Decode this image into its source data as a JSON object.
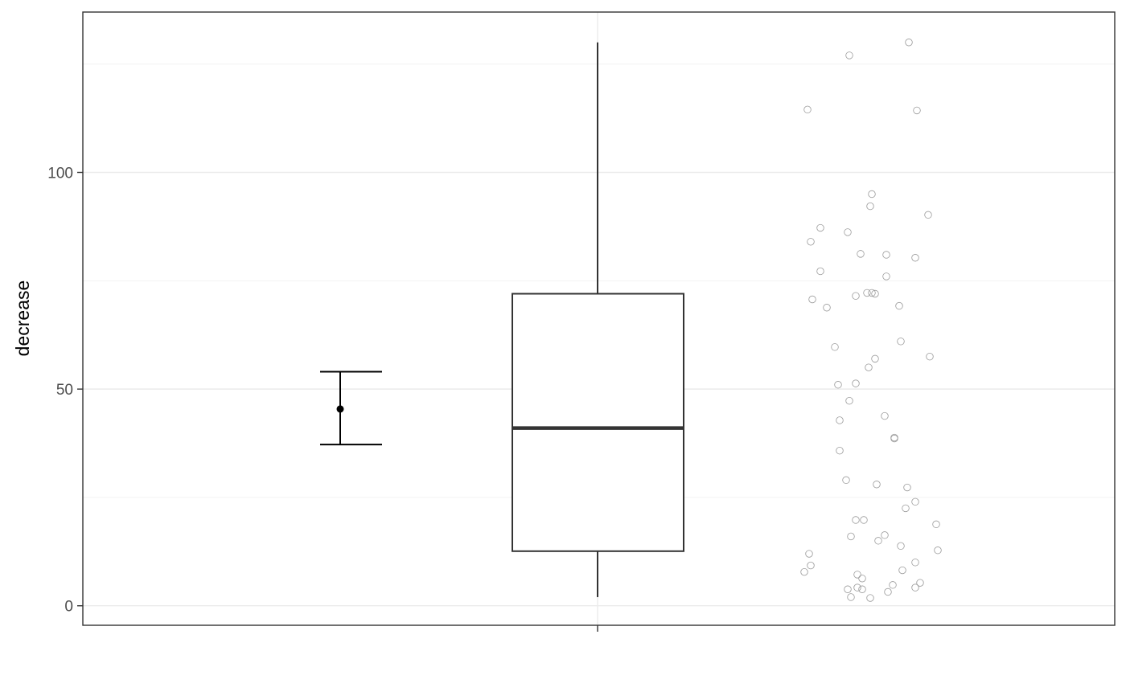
{
  "chart_data": {
    "type": "box",
    "ylabel": "decrease",
    "xlabel": "",
    "ylim": [
      -4.5,
      137
    ],
    "y_ticks": [
      "0",
      "50",
      "100"
    ],
    "y_tick_values": [
      0,
      50,
      100
    ],
    "grid": true,
    "theme": "bw",
    "colors": {
      "frame": "#333333",
      "grid_major": "#ebebeb",
      "grid_minor": "#f2f2f2",
      "box": "#333333",
      "median": "#333333",
      "points": "#999999",
      "errorbar": "#000000"
    },
    "errorbar": {
      "mean": 45.4,
      "lower": 37.2,
      "upper": 54.0
    },
    "box": {
      "whisker_low": 2.0,
      "q1": 12.6,
      "median": 41.0,
      "q3": 72.0,
      "whisker_high": 130.0
    },
    "points": [
      {
        "x": 0.85,
        "y": 130.0
      },
      {
        "x": 0.48,
        "y": 127.0
      },
      {
        "x": 0.22,
        "y": 114.5
      },
      {
        "x": 0.9,
        "y": 114.3
      },
      {
        "x": 0.62,
        "y": 95.0
      },
      {
        "x": 0.61,
        "y": 92.2
      },
      {
        "x": 0.97,
        "y": 90.2
      },
      {
        "x": 0.3,
        "y": 87.2
      },
      {
        "x": 0.47,
        "y": 86.2
      },
      {
        "x": 0.24,
        "y": 84.0
      },
      {
        "x": 0.55,
        "y": 81.2
      },
      {
        "x": 0.71,
        "y": 81.0
      },
      {
        "x": 0.89,
        "y": 80.3
      },
      {
        "x": 0.3,
        "y": 77.2
      },
      {
        "x": 0.71,
        "y": 76.0
      },
      {
        "x": 0.59,
        "y": 72.2
      },
      {
        "x": 0.64,
        "y": 72.0
      },
      {
        "x": 0.62,
        "y": 72.2
      },
      {
        "x": 0.52,
        "y": 71.5
      },
      {
        "x": 0.25,
        "y": 70.7
      },
      {
        "x": 0.34,
        "y": 68.8
      },
      {
        "x": 0.79,
        "y": 69.2
      },
      {
        "x": 0.8,
        "y": 61.0
      },
      {
        "x": 0.39,
        "y": 59.7
      },
      {
        "x": 0.98,
        "y": 57.5
      },
      {
        "x": 0.64,
        "y": 57.0
      },
      {
        "x": 0.6,
        "y": 55.0
      },
      {
        "x": 0.41,
        "y": 51.0
      },
      {
        "x": 0.52,
        "y": 51.3
      },
      {
        "x": 0.48,
        "y": 47.3
      },
      {
        "x": 0.7,
        "y": 43.8
      },
      {
        "x": 0.42,
        "y": 42.8
      },
      {
        "x": 0.76,
        "y": 38.8
      },
      {
        "x": 0.76,
        "y": 38.6
      },
      {
        "x": 0.42,
        "y": 35.8
      },
      {
        "x": 0.46,
        "y": 29.0
      },
      {
        "x": 0.65,
        "y": 28.0
      },
      {
        "x": 0.84,
        "y": 27.3
      },
      {
        "x": 0.89,
        "y": 24.0
      },
      {
        "x": 0.83,
        "y": 22.5
      },
      {
        "x": 0.52,
        "y": 19.8
      },
      {
        "x": 0.57,
        "y": 19.8
      },
      {
        "x": 1.02,
        "y": 18.8
      },
      {
        "x": 0.7,
        "y": 16.3
      },
      {
        "x": 0.49,
        "y": 16.0
      },
      {
        "x": 0.66,
        "y": 15.0
      },
      {
        "x": 0.8,
        "y": 13.8
      },
      {
        "x": 1.03,
        "y": 12.8
      },
      {
        "x": 0.23,
        "y": 12.0
      },
      {
        "x": 0.89,
        "y": 10.0
      },
      {
        "x": 0.24,
        "y": 9.3
      },
      {
        "x": 0.81,
        "y": 8.2
      },
      {
        "x": 0.2,
        "y": 7.8
      },
      {
        "x": 0.53,
        "y": 7.2
      },
      {
        "x": 0.56,
        "y": 6.3
      },
      {
        "x": 0.92,
        "y": 5.3
      },
      {
        "x": 0.75,
        "y": 4.8
      },
      {
        "x": 0.89,
        "y": 4.2
      },
      {
        "x": 0.53,
        "y": 4.2
      },
      {
        "x": 0.47,
        "y": 3.8
      },
      {
        "x": 0.56,
        "y": 3.8
      },
      {
        "x": 0.72,
        "y": 3.2
      },
      {
        "x": 0.49,
        "y": 2.0
      },
      {
        "x": 0.61,
        "y": 1.8
      }
    ]
  }
}
